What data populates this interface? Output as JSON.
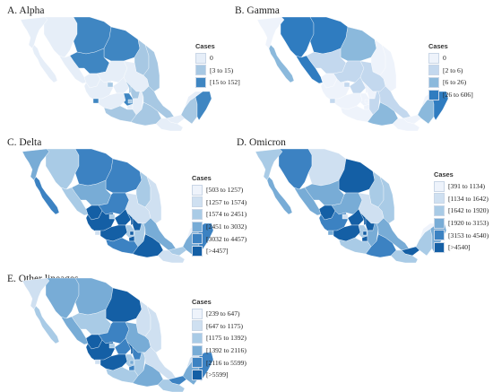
{
  "panels": [
    {
      "title": "A. Alpha",
      "legend_title": "Cases",
      "legend": [
        {
          "label": "0",
          "color": "#e6eef8"
        },
        {
          "label": "[3 to 15)",
          "color": "#a7c8e3"
        },
        {
          "label": "[15 to 152]",
          "color": "#3f86c2"
        }
      ],
      "state_classes": [
        0,
        0,
        0,
        0,
        2,
        2,
        2,
        1,
        1,
        0,
        0,
        0,
        0,
        1,
        0,
        1,
        1,
        2,
        0,
        2,
        1,
        0,
        1,
        0,
        1,
        1,
        1,
        0,
        0,
        1,
        2,
        0
      ]
    },
    {
      "title": "B. Gamma",
      "legend_title": "Cases",
      "legend": [
        {
          "label": "0",
          "color": "#eef3fb"
        },
        {
          "label": "[2 to 6)",
          "color": "#c3d8ee"
        },
        {
          "label": "[6 to 26)",
          "color": "#8bb9dc"
        },
        {
          "label": "[26 to 606]",
          "color": "#2f7cc0"
        }
      ],
      "state_classes": [
        0,
        2,
        3,
        3,
        3,
        2,
        1,
        0,
        0,
        1,
        1,
        0,
        0,
        1,
        1,
        0,
        0,
        1,
        0,
        0,
        0,
        0,
        0,
        1,
        1,
        0,
        2,
        0,
        0,
        2,
        3,
        0
      ]
    },
    {
      "title": "C. Delta",
      "legend_title": "Cases",
      "legend": [
        {
          "label": "[503 to 1257)",
          "color": "#eef3fb"
        },
        {
          "label": "[1257 to 1574)",
          "color": "#cfe0f1"
        },
        {
          "label": "[1574 to 2451)",
          "color": "#a9cbe6"
        },
        {
          "label": "[2451 to 3032)",
          "color": "#78acd6"
        },
        {
          "label": "[3032 to 4457)",
          "color": "#3c82c2"
        },
        {
          "label": "[>4457]",
          "color": "#145fa5"
        }
      ],
      "state_classes": [
        3,
        4,
        2,
        2,
        4,
        4,
        3,
        2,
        1,
        4,
        1,
        5,
        5,
        2,
        5,
        5,
        5,
        1,
        5,
        2,
        5,
        5,
        5,
        2,
        3,
        4,
        5,
        2,
        1,
        3,
        4,
        0
      ]
    },
    {
      "title": "D. Omicron",
      "legend_title": "Cases",
      "legend": [
        {
          "label": "[391 to 1134)",
          "color": "#eef3fb"
        },
        {
          "label": "[1134 to 1642)",
          "color": "#cfe0f1"
        },
        {
          "label": "[1642 to 1920)",
          "color": "#a9cbe6"
        },
        {
          "label": "[1920 to 3153)",
          "color": "#78acd6"
        },
        {
          "label": "[3153 to 4540)",
          "color": "#3c82c2"
        },
        {
          "label": "[>4540]",
          "color": "#145fa5"
        }
      ],
      "state_classes": [
        2,
        3,
        4,
        3,
        1,
        5,
        3,
        2,
        2,
        3,
        1,
        5,
        4,
        1,
        5,
        5,
        5,
        3,
        5,
        2,
        5,
        5,
        2,
        3,
        3,
        2,
        4,
        5,
        2,
        2,
        3,
        0
      ]
    },
    {
      "title": "E. Other lineages",
      "legend_title": "Cases",
      "legend": [
        {
          "label": "[239 to 647)",
          "color": "#eef3fb"
        },
        {
          "label": "[647 to 1175)",
          "color": "#cfe0f1"
        },
        {
          "label": "[1175 to 1392)",
          "color": "#a9cbe6"
        },
        {
          "label": "[1392 to 2116)",
          "color": "#78acd6"
        },
        {
          "label": "[2116 to 5599)",
          "color": "#3c82c2"
        },
        {
          "label": "[>5599]",
          "color": "#145fa5"
        }
      ],
      "state_classes": [
        1,
        2,
        3,
        3,
        3,
        5,
        2,
        1,
        1,
        4,
        3,
        5,
        5,
        2,
        4,
        5,
        4,
        1,
        5,
        2,
        3,
        4,
        3,
        2,
        1,
        2,
        3,
        4,
        2,
        3,
        4,
        1
      ]
    }
  ]
}
